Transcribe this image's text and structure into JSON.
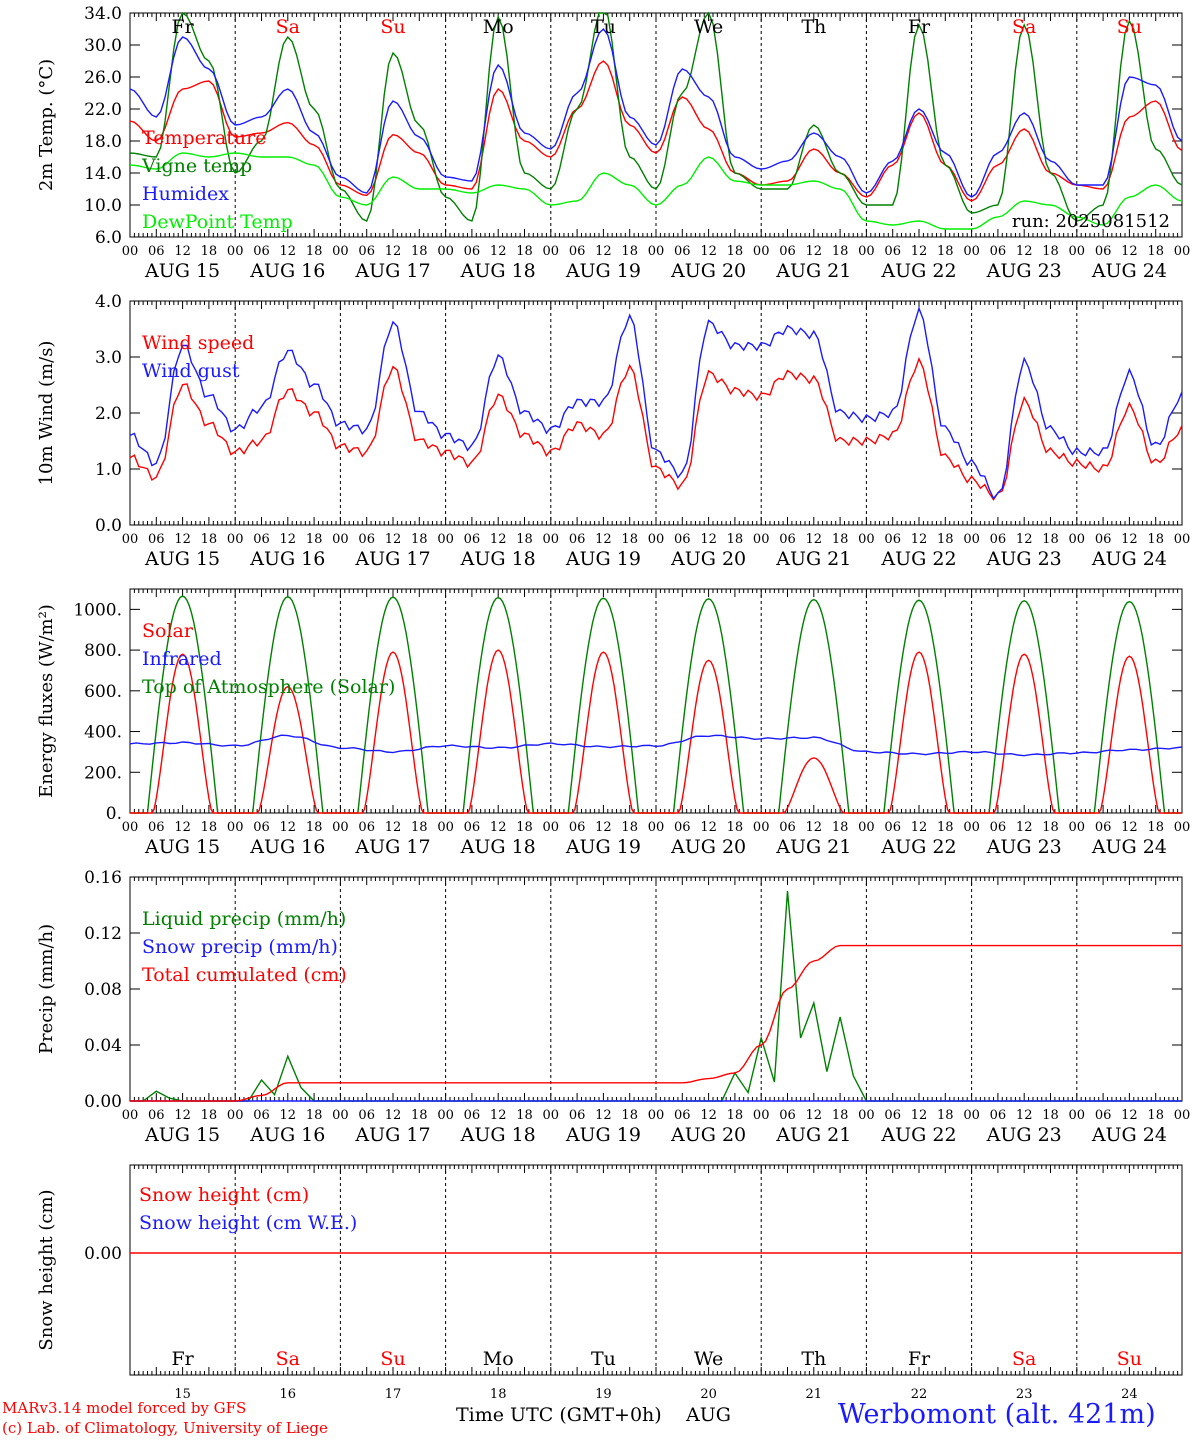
{
  "chart_data": [
    {
      "type": "line",
      "ylabel": "2m Temp. (°C)",
      "ylim": [
        6,
        34
      ],
      "yticks": [
        "6.0",
        "10.0",
        "14.0",
        "18.0",
        "22.0",
        "26.0",
        "30.0",
        "34.0"
      ],
      "run_label": "run: 2025081512",
      "x_hours": [
        0,
        6,
        12,
        18,
        24,
        30,
        36,
        42,
        48,
        54,
        60,
        66,
        72,
        78,
        84,
        90,
        96,
        102,
        108,
        114,
        120,
        126,
        132,
        138,
        144,
        150,
        156,
        162,
        168,
        174,
        180,
        186,
        192,
        198,
        204,
        210,
        216,
        222,
        228,
        234,
        240
      ],
      "series": [
        {
          "name": "Temperature",
          "color": "#ff0000",
          "values": [
            20.5,
            18.0,
            24.5,
            25.5,
            18.5,
            19.0,
            20.3,
            17.5,
            12.5,
            11.2,
            18.8,
            16.5,
            12.5,
            12.0,
            24.5,
            18.0,
            16.0,
            22.0,
            28.0,
            20.0,
            16.5,
            23.5,
            19.5,
            14.0,
            12.5,
            13.0,
            17.0,
            14.0,
            11.0,
            15.0,
            21.5,
            15.0,
            10.5,
            15.0,
            19.5,
            14.0,
            12.5,
            12.0,
            21.0,
            23.0,
            16.8
          ]
        },
        {
          "name": "Vigne temp",
          "color": "#008000",
          "values": [
            16.5,
            16.0,
            34.0,
            28.0,
            14.0,
            18.0,
            31.0,
            22.0,
            12.0,
            8.0,
            29.0,
            20.0,
            11.0,
            8.0,
            33.5,
            14.0,
            12.0,
            22.0,
            35.0,
            16.0,
            12.0,
            24.0,
            34.0,
            14.0,
            12.0,
            12.0,
            20.0,
            14.0,
            10.0,
            10.0,
            32.5,
            15.0,
            9.0,
            10.0,
            32.5,
            14.0,
            8.0,
            10.0,
            33.0,
            17.0,
            12.5
          ]
        },
        {
          "name": "Humidex",
          "color": "#1a1aff",
          "values": [
            24.5,
            21.0,
            31.0,
            27.0,
            20.0,
            21.0,
            24.5,
            19.0,
            13.5,
            11.5,
            23.0,
            18.5,
            13.5,
            13.0,
            27.5,
            19.0,
            17.0,
            24.0,
            32.0,
            21.0,
            17.5,
            27.0,
            23.5,
            16.0,
            14.5,
            15.5,
            19.0,
            16.0,
            11.5,
            15.5,
            22.0,
            16.5,
            11.0,
            16.5,
            21.5,
            15.5,
            12.5,
            12.5,
            26.0,
            25.0,
            18.0
          ]
        },
        {
          "name": "DewPoint Temp",
          "color": "#00ee00",
          "values": [
            15.0,
            14.5,
            16.5,
            16.0,
            16.5,
            16.0,
            16.0,
            15.0,
            11.0,
            10.0,
            13.5,
            12.0,
            12.0,
            11.5,
            12.5,
            12.0,
            10.0,
            10.5,
            14.0,
            12.5,
            10.0,
            12.5,
            16.0,
            13.0,
            12.5,
            12.5,
            13.0,
            12.0,
            8.0,
            7.5,
            8.0,
            7.0,
            7.0,
            8.5,
            10.5,
            10.0,
            8.5,
            7.5,
            11.0,
            12.5,
            10.5
          ]
        }
      ]
    },
    {
      "type": "line",
      "ylabel": "10m Wind (m/s)",
      "ylim": [
        0,
        4
      ],
      "yticks": [
        "0.0",
        "1.0",
        "2.0",
        "3.0",
        "4.0"
      ],
      "x_hours": [
        0,
        6,
        12,
        18,
        24,
        30,
        36,
        42,
        48,
        54,
        60,
        66,
        72,
        78,
        84,
        90,
        96,
        102,
        108,
        114,
        120,
        126,
        132,
        138,
        144,
        150,
        156,
        162,
        168,
        174,
        180,
        186,
        192,
        198,
        204,
        210,
        216,
        222,
        228,
        234,
        240
      ],
      "series": [
        {
          "name": "Wind speed",
          "color": "#ff0000",
          "values": [
            1.2,
            0.85,
            2.5,
            1.8,
            1.3,
            1.5,
            2.4,
            2.0,
            1.4,
            1.3,
            2.8,
            1.5,
            1.3,
            1.1,
            2.3,
            1.6,
            1.3,
            1.8,
            1.6,
            2.8,
            1.0,
            0.7,
            2.7,
            2.4,
            2.3,
            2.7,
            2.6,
            1.5,
            1.5,
            1.6,
            2.9,
            1.2,
            0.8,
            0.5,
            2.2,
            1.3,
            1.1,
            1.0,
            2.1,
            1.1,
            1.7
          ]
        },
        {
          "name": "Wind gust",
          "color": "#1a1aff",
          "values": [
            1.6,
            1.1,
            3.2,
            2.3,
            1.7,
            2.1,
            3.1,
            2.5,
            1.8,
            1.7,
            3.6,
            2.0,
            1.6,
            1.4,
            3.0,
            2.0,
            1.7,
            2.2,
            2.2,
            3.7,
            1.3,
            0.9,
            3.6,
            3.2,
            3.2,
            3.5,
            3.4,
            2.0,
            1.9,
            2.0,
            3.8,
            1.7,
            1.1,
            0.5,
            2.9,
            1.7,
            1.3,
            1.3,
            2.7,
            1.4,
            2.3
          ]
        }
      ]
    },
    {
      "type": "line",
      "ylabel": "Energy fluxes (W/m²)",
      "ylim": [
        0,
        1100
      ],
      "yticks": [
        "0.",
        "200.",
        "400.",
        "600.",
        "800.",
        "1000."
      ],
      "series_daily": [
        {
          "name": "Solar",
          "color": "#ff0000",
          "daily_peak": [
            780,
            620,
            790,
            800,
            790,
            750,
            270,
            790,
            780,
            770
          ]
        },
        {
          "name": "Infrared",
          "color": "#1a1aff",
          "values_by_day": [
            340,
            345,
            330,
            380,
            320,
            300,
            330,
            320,
            340,
            325,
            330,
            380,
            365,
            370,
            300,
            290,
            300,
            285,
            295,
            310,
            320
          ]
        },
        {
          "name": "Top of Atmosphere (Solar)",
          "color": "#008000",
          "daily_peak": [
            1065,
            1062,
            1060,
            1058,
            1055,
            1052,
            1048,
            1045,
            1042,
            1038
          ]
        }
      ]
    },
    {
      "type": "line",
      "ylabel": "Precip (mm/h)",
      "ylim": [
        0,
        0.16
      ],
      "yticks": [
        "0.00",
        "0.04",
        "0.08",
        "0.12",
        "0.16"
      ],
      "x_hours": [
        0,
        6,
        12,
        18,
        24,
        30,
        36,
        42,
        48,
        54,
        60,
        66,
        72,
        78,
        84,
        90,
        96,
        102,
        108,
        114,
        120,
        126,
        132,
        138,
        144,
        150,
        156,
        162,
        168,
        174,
        180,
        186,
        192,
        198,
        204,
        210,
        216,
        222,
        228,
        234,
        240
      ],
      "series": [
        {
          "name": "Liquid precip (mm/h)",
          "color": "#008000",
          "values": [
            0,
            0.007,
            0,
            0,
            0,
            0.015,
            0.032,
            0,
            0,
            0,
            0,
            0,
            0,
            0,
            0,
            0,
            0,
            0,
            0,
            0,
            0,
            0,
            0,
            0.02,
            0.045,
            0.15,
            0.07,
            0.06,
            0,
            0,
            0,
            0,
            0,
            0,
            0,
            0,
            0,
            0,
            0,
            0,
            0
          ]
        },
        {
          "name": "Snow precip (mm/h)",
          "color": "#1a1aff",
          "values": [
            0,
            0,
            0,
            0,
            0,
            0,
            0,
            0,
            0,
            0,
            0,
            0,
            0,
            0,
            0,
            0,
            0,
            0,
            0,
            0,
            0,
            0,
            0,
            0,
            0,
            0,
            0,
            0,
            0,
            0,
            0,
            0,
            0,
            0,
            0,
            0,
            0,
            0,
            0,
            0,
            0
          ]
        },
        {
          "name": "Total cumulated (cm)",
          "color": "#ff0000",
          "values": [
            0,
            0,
            0,
            0,
            0,
            0.004,
            0.013,
            0.013,
            0.013,
            0.013,
            0.013,
            0.013,
            0.013,
            0.013,
            0.013,
            0.013,
            0.013,
            0.013,
            0.013,
            0.013,
            0.013,
            0.013,
            0.016,
            0.02,
            0.04,
            0.08,
            0.1,
            0.111,
            0.111,
            0.111,
            0.111,
            0.111,
            0.111,
            0.111,
            0.111,
            0.111,
            0.111,
            0.111,
            0.111,
            0.111,
            0.111
          ]
        }
      ]
    },
    {
      "type": "line",
      "ylabel": "Snow height (cm)",
      "ylim": [
        -0.01,
        0.01
      ],
      "yticks": [
        "0.00"
      ],
      "series": [
        {
          "name": "Snow height (cm)",
          "color": "#ff0000",
          "values": [
            0,
            0
          ]
        },
        {
          "name": "Snow height (cm W.E.)",
          "color": "#1a1aff",
          "values": [
            0,
            0
          ]
        }
      ]
    }
  ],
  "x_axis": {
    "hour_ticks": [
      "00",
      "06",
      "12",
      "18"
    ],
    "final_tick": "00",
    "dates": [
      "AUG 15",
      "AUG 16",
      "AUG 17",
      "AUG 18",
      "AUG 19",
      "AUG 20",
      "AUG 21",
      "AUG 22",
      "AUG 23",
      "AUG 24"
    ],
    "weekdays": [
      {
        "label": "Fr",
        "color": "#000000"
      },
      {
        "label": "Sa",
        "color": "#ff0000"
      },
      {
        "label": "Su",
        "color": "#ff0000"
      },
      {
        "label": "Mo",
        "color": "#000000"
      },
      {
        "label": "Tu",
        "color": "#000000"
      },
      {
        "label": "We",
        "color": "#000000"
      },
      {
        "label": "Th",
        "color": "#000000"
      },
      {
        "label": "Fr",
        "color": "#000000"
      },
      {
        "label": "Sa",
        "color": "#ff0000"
      },
      {
        "label": "Su",
        "color": "#ff0000"
      }
    ],
    "day_numbers": [
      "15",
      "16",
      "17",
      "18",
      "19",
      "20",
      "21",
      "22",
      "23",
      "24"
    ]
  },
  "footer": {
    "credit_line1": "MARv3.14 model forced by GFS",
    "credit_line2": "(c) Lab. of Climatology, University of Liege",
    "xlabel": "Time UTC (GMT+0h)",
    "month": "AUG",
    "location": "Werbomont (alt. 421m)"
  }
}
